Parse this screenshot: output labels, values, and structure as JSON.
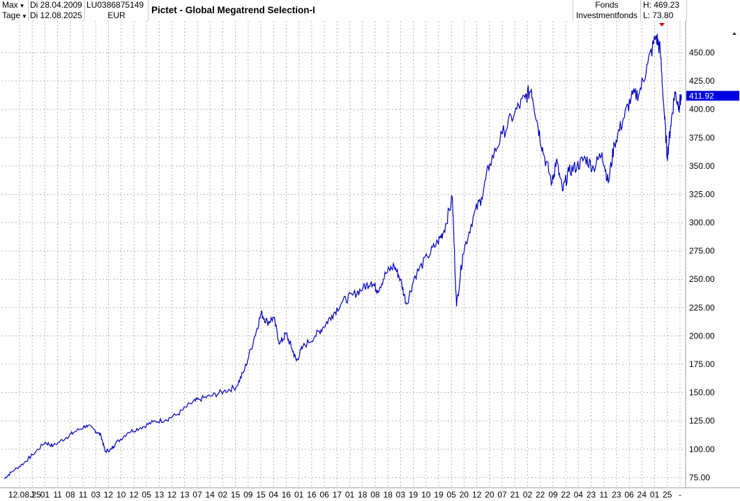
{
  "header": {
    "range_select": "Max",
    "interval_select": "Tage",
    "date_from": "Di 28.04.2009",
    "date_to": "Di 12.08.2025",
    "isin": "LU0386875149",
    "currency": "EUR",
    "title": "Pictet - Global Megatrend Selection-I",
    "type_line1": "Fonds",
    "type_line2": "Investmentfonds",
    "high": "H: 469.23",
    "low": "L: 73.80",
    "last_price": "411.92"
  },
  "colors": {
    "line": "#0000c0",
    "grid": "#b4b4b4",
    "price_tag": "#0000e0",
    "marker": "#cc0000"
  },
  "chart_data": {
    "type": "line",
    "title": "Pictet - Global Megatrend Selection-I",
    "xlabel": "",
    "ylabel": "",
    "ylim": [
      66,
      478
    ],
    "grid": true,
    "y_ticks": [
      75,
      100,
      125,
      150,
      175,
      200,
      225,
      250,
      275,
      300,
      325,
      350,
      375,
      400,
      425,
      450
    ],
    "y_tick_labels": [
      "75.00",
      "100.00",
      "125.00",
      "150.00",
      "175.00",
      "200.00",
      "225.00",
      "250.00",
      "275.00",
      "300.00",
      "325.00",
      "350.00",
      "375.00",
      "400.00",
      "425.00",
      "450.00"
    ],
    "x_tick_labels": [
      "12.08.25",
      "J",
      "01",
      "11",
      "08",
      "11",
      "03",
      "12",
      "10",
      "12",
      "05",
      "13",
      "12",
      "13",
      "07",
      "14",
      "02",
      "15",
      "09",
      "15",
      "04",
      "16",
      "01",
      "16",
      "06",
      "17",
      "01",
      "18",
      "08",
      "18",
      "03",
      "19",
      "10",
      "19",
      "05",
      "20",
      "12",
      "20",
      "07",
      "21",
      "02",
      "22",
      "09",
      "22",
      "04",
      "23",
      "11",
      "23",
      "06",
      "24",
      "01",
      "25",
      "-"
    ],
    "series": [
      {
        "values": [
          [
            2009.32,
            74
          ],
          [
            2009.5,
            80
          ],
          [
            2009.8,
            88
          ],
          [
            2010.0,
            95
          ],
          [
            2010.3,
            106
          ],
          [
            2010.5,
            103
          ],
          [
            2010.8,
            110
          ],
          [
            2011.0,
            115
          ],
          [
            2011.3,
            121
          ],
          [
            2011.5,
            117
          ],
          [
            2011.65,
            112
          ],
          [
            2011.75,
            98
          ],
          [
            2011.9,
            100
          ],
          [
            2012.0,
            105
          ],
          [
            2012.3,
            115
          ],
          [
            2012.6,
            119
          ],
          [
            2012.9,
            124
          ],
          [
            2013.2,
            126
          ],
          [
            2013.5,
            131
          ],
          [
            2013.8,
            140
          ],
          [
            2014.0,
            144
          ],
          [
            2014.3,
            147
          ],
          [
            2014.6,
            151
          ],
          [
            2014.9,
            155
          ],
          [
            2015.1,
            170
          ],
          [
            2015.35,
            200
          ],
          [
            2015.5,
            220
          ],
          [
            2015.65,
            212
          ],
          [
            2015.8,
            216
          ],
          [
            2015.95,
            193
          ],
          [
            2016.1,
            202
          ],
          [
            2016.25,
            188
          ],
          [
            2016.35,
            178
          ],
          [
            2016.5,
            190
          ],
          [
            2016.8,
            200
          ],
          [
            2017.0,
            208
          ],
          [
            2017.2,
            218
          ],
          [
            2017.45,
            230
          ],
          [
            2017.7,
            236
          ],
          [
            2017.95,
            242
          ],
          [
            2018.15,
            248
          ],
          [
            2018.3,
            240
          ],
          [
            2018.5,
            255
          ],
          [
            2018.7,
            262
          ],
          [
            2018.85,
            250
          ],
          [
            2019.0,
            228
          ],
          [
            2019.2,
            253
          ],
          [
            2019.5,
            270
          ],
          [
            2019.75,
            283
          ],
          [
            2019.9,
            293
          ],
          [
            2020.1,
            322
          ],
          [
            2020.2,
            226
          ],
          [
            2020.35,
            272
          ],
          [
            2020.6,
            305
          ],
          [
            2020.8,
            322
          ],
          [
            2021.0,
            352
          ],
          [
            2021.3,
            378
          ],
          [
            2021.6,
            397
          ],
          [
            2021.85,
            410
          ],
          [
            2022.0,
            418
          ],
          [
            2022.15,
            387
          ],
          [
            2022.3,
            360
          ],
          [
            2022.5,
            335
          ],
          [
            2022.6,
            355
          ],
          [
            2022.75,
            328
          ],
          [
            2022.9,
            345
          ],
          [
            2023.1,
            350
          ],
          [
            2023.3,
            357
          ],
          [
            2023.5,
            348
          ],
          [
            2023.7,
            362
          ],
          [
            2023.85,
            335
          ],
          [
            2024.0,
            370
          ],
          [
            2024.2,
            390
          ],
          [
            2024.4,
            410
          ],
          [
            2024.6,
            415
          ],
          [
            2024.8,
            440
          ],
          [
            2025.0,
            465
          ],
          [
            2025.1,
            452
          ],
          [
            2025.2,
            395
          ],
          [
            2025.27,
            358
          ],
          [
            2025.35,
            385
          ],
          [
            2025.45,
            415
          ],
          [
            2025.55,
            403
          ],
          [
            2025.61,
            411.92
          ]
        ]
      }
    ]
  }
}
